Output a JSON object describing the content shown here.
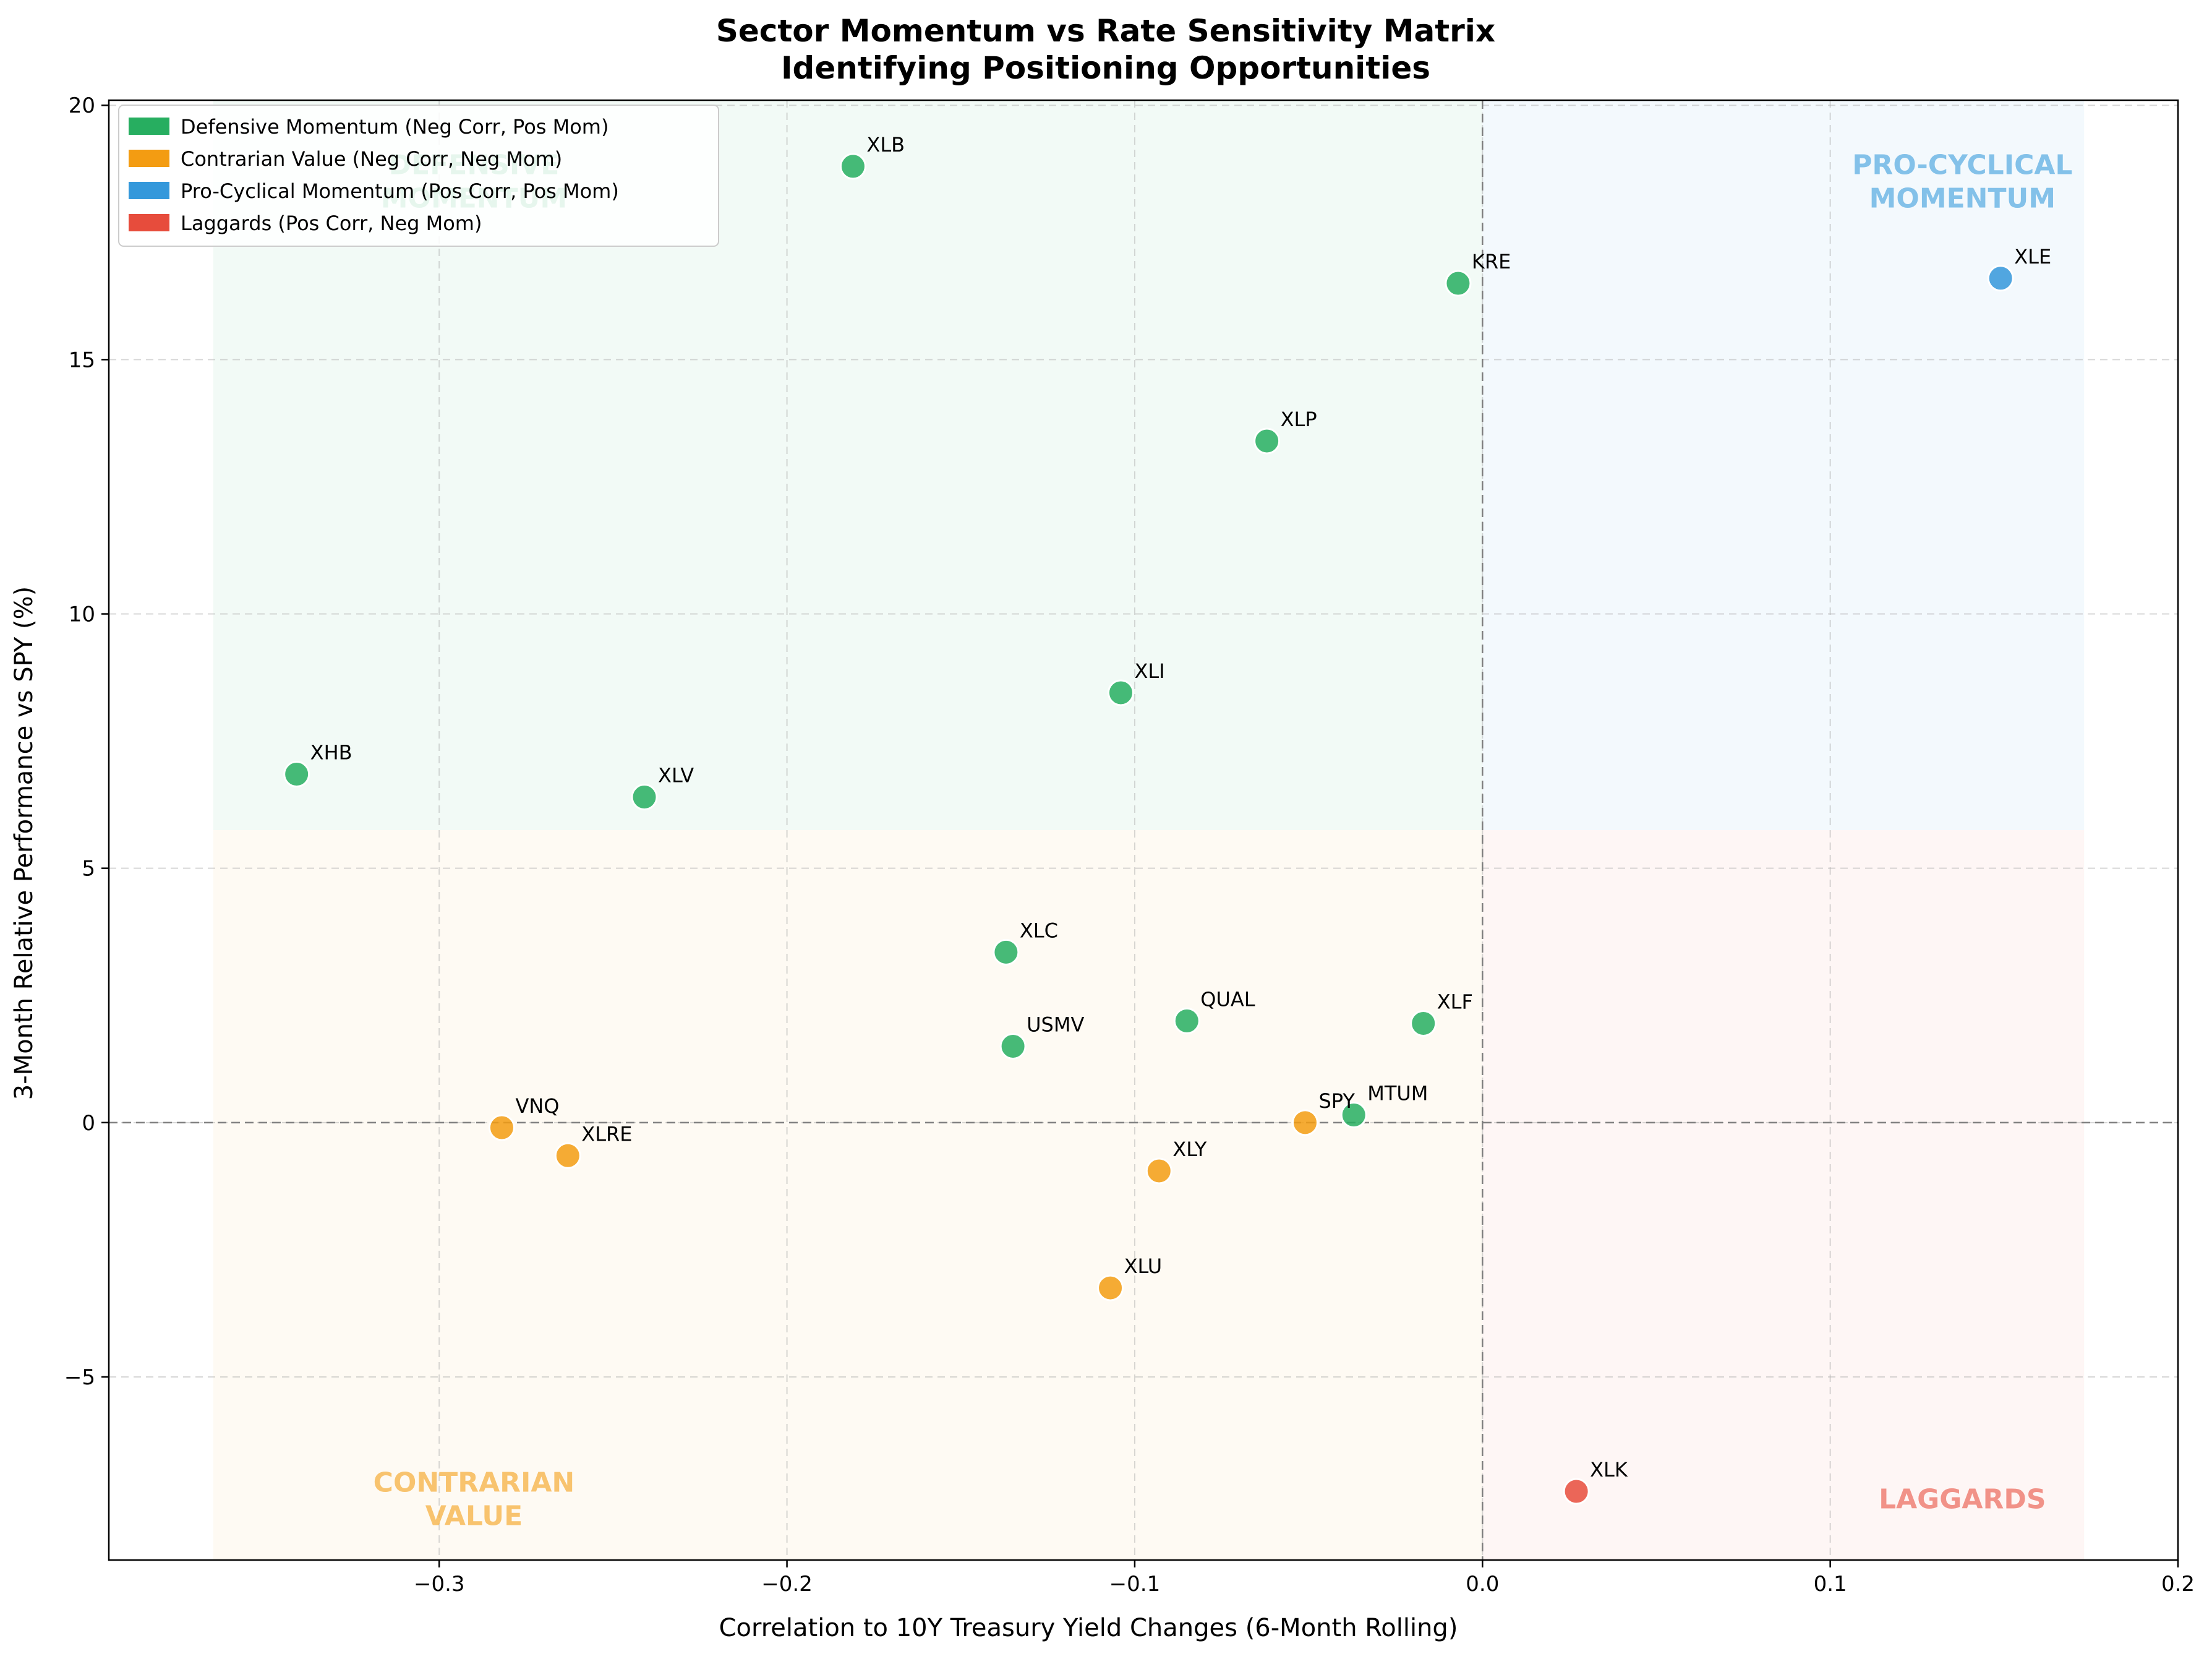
{
  "chart_data": {
    "type": "scatter",
    "title_lines": [
      "Sector Momentum vs Rate Sensitivity Matrix",
      "Identifying Positioning Opportunities"
    ],
    "xlabel": "Correlation to 10Y Treasury Yield Changes (6-Month Rolling)",
    "ylabel": "3-Month Relative Performance vs SPY (%)",
    "xlim": [
      -0.395,
      0.2
    ],
    "ylim": [
      -8.6,
      20.1
    ],
    "x_ticks": [
      -0.3,
      -0.2,
      -0.1,
      0.0,
      0.1,
      0.2
    ],
    "x_tick_labels": [
      "−0.3",
      "−0.2",
      "−0.1",
      "0.0",
      "0.1",
      "0.2"
    ],
    "y_ticks": [
      -5,
      0,
      5,
      10,
      15,
      20
    ],
    "y_tick_labels": [
      "−5",
      "0",
      "5",
      "10",
      "15",
      "20"
    ],
    "grid": true,
    "legend_position": "upper-left",
    "quadrant_split_y": 5.75,
    "quadrant_x_range": [
      -0.365,
      0.173
    ],
    "quadrant_labels": [
      {
        "lines": [
          "DEFENSIVE",
          "MOMENTUM"
        ],
        "color": "#27ae60",
        "quadrant": "top-left",
        "x": -0.29,
        "y": 18.5
      },
      {
        "lines": [
          "PRO-CYCLICAL",
          "MOMENTUM"
        ],
        "color": "#5dade2",
        "quadrant": "top-right",
        "x": 0.138,
        "y": 18.5
      },
      {
        "lines": [
          "CONTRARIAN",
          "VALUE"
        ],
        "color": "#f5b041",
        "quadrant": "bottom-left",
        "x": -0.29,
        "y": -7.4
      },
      {
        "lines": [
          "LAGGARDS"
        ],
        "color": "#ec7063",
        "quadrant": "bottom-right",
        "x": 0.138,
        "y": -7.4
      }
    ],
    "legend": [
      {
        "label": "Defensive Momentum (Neg Corr, Pos Mom)",
        "color": "#27ae60"
      },
      {
        "label": "Contrarian Value (Neg Corr, Neg Mom)",
        "color": "#f39c12"
      },
      {
        "label": "Pro-Cyclical Momentum (Pos Corr, Pos Mom)",
        "color": "#3498db"
      },
      {
        "label": "Laggards (Pos Corr, Neg Mom)",
        "color": "#e74c3c"
      }
    ],
    "colors": {
      "defensive": "#27ae60",
      "contrarian": "#f39c12",
      "procyclical": "#3498db",
      "laggard": "#e74c3c"
    },
    "points": [
      {
        "label": "XLB",
        "x": -0.181,
        "y": 18.8,
        "group": "defensive"
      },
      {
        "label": "KRE",
        "x": -0.007,
        "y": 16.5,
        "group": "defensive"
      },
      {
        "label": "XLE",
        "x": 0.149,
        "y": 16.6,
        "group": "procyclical"
      },
      {
        "label": "XLP",
        "x": -0.062,
        "y": 13.4,
        "group": "defensive"
      },
      {
        "label": "XLI",
        "x": -0.104,
        "y": 8.45,
        "group": "defensive"
      },
      {
        "label": "XHB",
        "x": -0.341,
        "y": 6.85,
        "group": "defensive"
      },
      {
        "label": "XLV",
        "x": -0.241,
        "y": 6.4,
        "group": "defensive"
      },
      {
        "label": "XLC",
        "x": -0.137,
        "y": 3.35,
        "group": "defensive"
      },
      {
        "label": "QUAL",
        "x": -0.085,
        "y": 2.0,
        "group": "defensive"
      },
      {
        "label": "XLF",
        "x": -0.017,
        "y": 1.95,
        "group": "defensive"
      },
      {
        "label": "USMV",
        "x": -0.135,
        "y": 1.5,
        "group": "defensive"
      },
      {
        "label": "MTUM",
        "x": -0.037,
        "y": 0.15,
        "group": "defensive"
      },
      {
        "label": "SPY",
        "x": -0.051,
        "y": 0.0,
        "group": "contrarian"
      },
      {
        "label": "VNQ",
        "x": -0.282,
        "y": -0.1,
        "group": "contrarian"
      },
      {
        "label": "XLRE",
        "x": -0.263,
        "y": -0.65,
        "group": "contrarian"
      },
      {
        "label": "XLY",
        "x": -0.093,
        "y": -0.95,
        "group": "contrarian"
      },
      {
        "label": "XLU",
        "x": -0.107,
        "y": -3.25,
        "group": "contrarian"
      },
      {
        "label": "XLK",
        "x": 0.027,
        "y": -7.25,
        "group": "laggard"
      }
    ]
  }
}
